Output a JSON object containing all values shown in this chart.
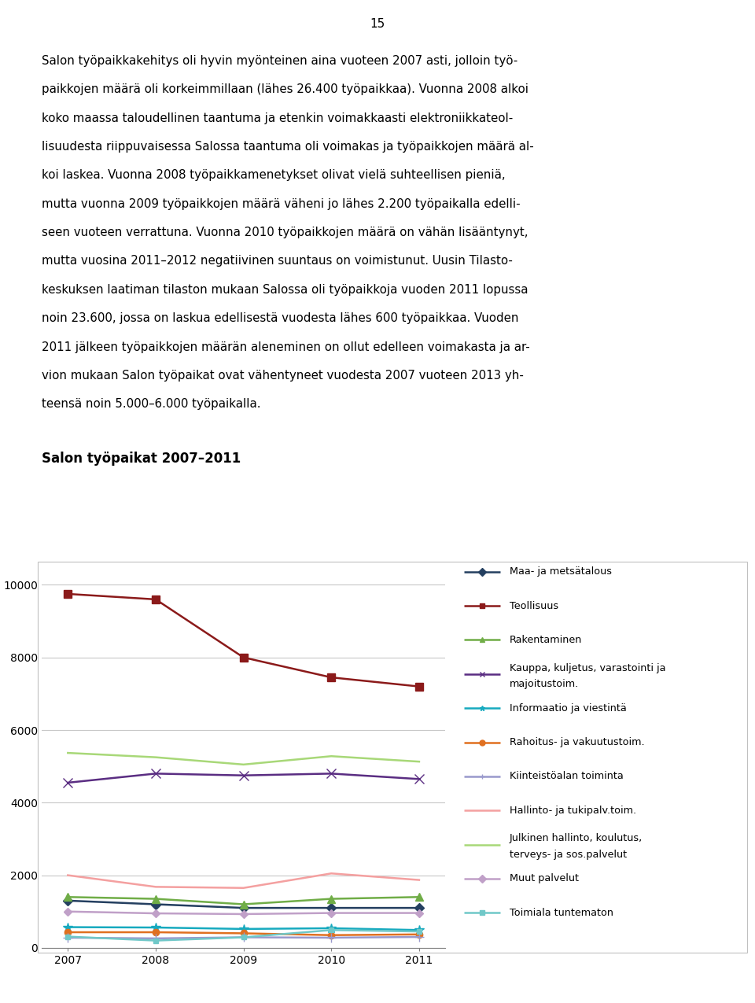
{
  "years": [
    2007,
    2008,
    2009,
    2010,
    2011
  ],
  "page_number": "15",
  "title": "Salon työpaikat 2007–2011",
  "body_lines": [
    "Salon työpaikkakehitys oli hyvin myönteinen aina vuoteen 2007 asti, jolloin työ-",
    "paikkojen määrä oli korkeimmillaan (lähes 26.400 työpaikkaa). Vuonna 2008 alkoi",
    "koko maassa taloudellinen taantuma ja etenkin voimakkaasti elektroniikkateol-",
    "lisuudesta riippuvaisessa Salossa taantuma oli voimakas ja työpaikkojen määrä al-",
    "koi laskea. Vuonna 2008 työpaikkamenetykset olivat vielä suhteellisen pieniä,",
    "mutta vuonna 2009 työpaikkojen määrä väheni jo lähes 2.200 työpaikalla edelli-",
    "seen vuoteen verrattuna. Vuonna 2010 työpaikkojen määrä on vähän lisääntynyt,",
    "mutta vuosina 2011–2012 negatiivinen suuntaus on voimistunut. Uusin Tilasto-",
    "keskuksen laatiman tilaston mukaan Salossa oli työpaikkoja vuoden 2011 lopussa",
    "noin 23.600, jossa on laskua edellisestä vuodesta lähes 600 työpaikkaa. Vuoden",
    "2011 jälkeen työpaikkojen määrän aleneminen on ollut edelleen voimakasta ja ar-",
    "vion mukaan Salon työpaikat ovat vähentyneet vuodesta 2007 vuoteen 2013 yh-",
    "teensä noin 5.000–6.000 työpaikalla."
  ],
  "series": {
    "Maa- ja metsätalous": {
      "values": [
        1300,
        1200,
        1100,
        1100,
        1100
      ],
      "color": "#243F60",
      "marker": "D",
      "marker_size": 6
    },
    "Teollisuus": {
      "values": [
        9750,
        9600,
        8000,
        7450,
        7200
      ],
      "color": "#8B1A1A",
      "marker": "s",
      "marker_size": 7
    },
    "Rakentaminen": {
      "values": [
        1400,
        1350,
        1200,
        1350,
        1400
      ],
      "color": "#70AD47",
      "marker": "^",
      "marker_size": 7
    },
    "Kauppa, kuljetus, varastointi ja majoitustoim.": {
      "values": [
        4550,
        4800,
        4750,
        4800,
        4650
      ],
      "color": "#5A2D82",
      "marker": "x",
      "marker_size": 9
    },
    "Informaatio ja viestintä": {
      "values": [
        570,
        560,
        520,
        540,
        490
      ],
      "color": "#17AABF",
      "marker": "*",
      "marker_size": 9
    },
    "Rahoitus- ja vakuutustoim.": {
      "values": [
        430,
        430,
        400,
        350,
        370
      ],
      "color": "#E07020",
      "marker": "o",
      "marker_size": 6
    },
    "Kiinteistöalan toiminta": {
      "values": [
        280,
        260,
        290,
        280,
        300
      ],
      "color": "#9999CC",
      "marker": "+",
      "marker_size": 9
    },
    "Hallinto- ja tukipalv.toim.": {
      "values": [
        2000,
        1680,
        1650,
        2050,
        1870
      ],
      "color": "#F4A0A0",
      "marker": "None",
      "marker_size": 0
    },
    "Julkinen hallinto, koulutus, terveys- ja sos.palvelut": {
      "values": [
        5370,
        5250,
        5050,
        5280,
        5130
      ],
      "color": "#A8D878",
      "marker": "None",
      "marker_size": 0
    },
    "Muut palvelut": {
      "values": [
        1000,
        950,
        930,
        960,
        960
      ],
      "color": "#C0A0C8",
      "marker": "D",
      "marker_size": 5
    },
    "Toimiala tuntematon": {
      "values": [
        310,
        200,
        290,
        490,
        450
      ],
      "color": "#70C8C8",
      "marker": "s",
      "marker_size": 5
    }
  },
  "legend_labels": [
    "Maa- ja metsätalous",
    "Teollisuus",
    "Rakentaminen",
    "Kauppa, kuljetus, varastointi ja\nmajoitustoim.",
    "Informaatio ja viestintä",
    "Rahoitus- ja vakuutustoim.",
    "Kiinteistöalan toiminta",
    "Hallinto- ja tukipalv.toim.",
    "Julkinen hallinto, koulutus,\nterveys- ja sos.palvelut",
    "Muut palvelut",
    "Toimiala tuntematon"
  ],
  "ylim": [
    0,
    10500
  ],
  "yticks": [
    0,
    2000,
    4000,
    6000,
    8000,
    10000
  ],
  "background_color": "#FFFFFF",
  "plot_area_bg": "#FFFFFF",
  "grid_color": "#C8C8C8",
  "axis_color": "#808080"
}
